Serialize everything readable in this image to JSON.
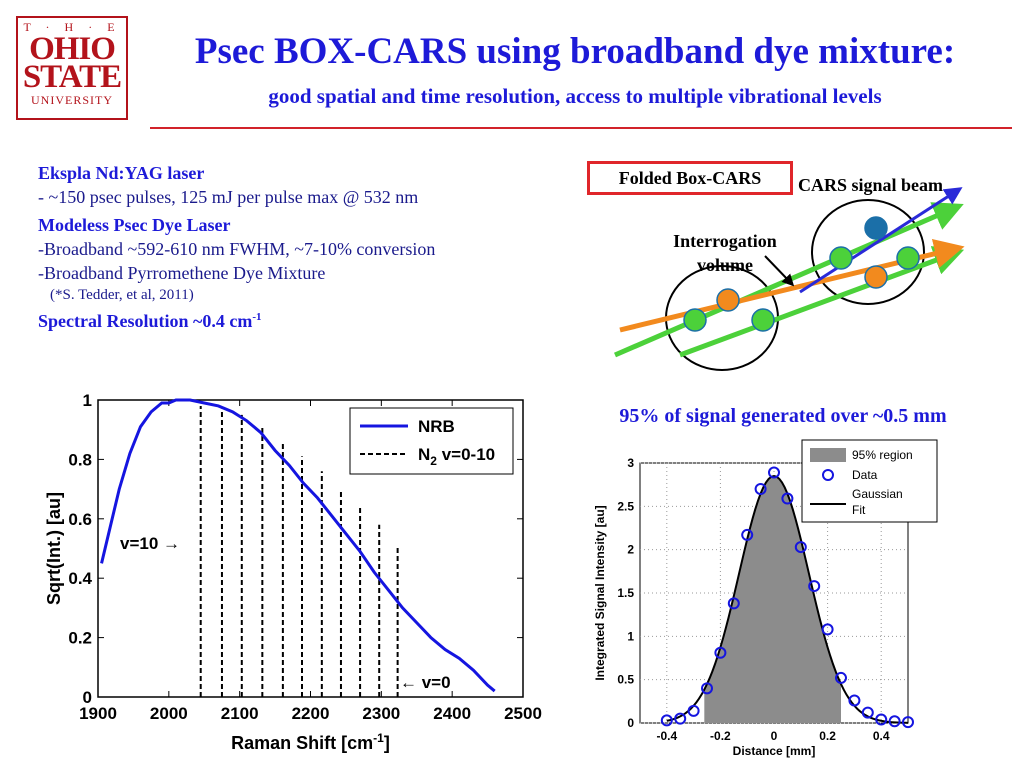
{
  "logo": {
    "line1": "T · H · E",
    "line2": "OHIO",
    "line3": "STATE",
    "line4": "UNIVERSITY"
  },
  "title": "Psec BOX-CARS using broadband dye mixture:",
  "subtitle": "good spatial and time resolution, access to multiple vibrational levels",
  "left_text": {
    "laser_head": "Ekspla Nd:YAG laser",
    "laser_detail": "- ~150 psec pulses, 125 mJ per pulse max @ 532 nm",
    "dye_head": "Modeless Psec Dye Laser",
    "dye_line1": "-Broadband ~592-610 nm FWHM, ~7-10% conversion",
    "dye_line2": "-Broadband Pyrromethene Dye Mixture",
    "dye_ref": "(*S. Tedder, et al, 2011)",
    "spectral_res": "Spectral Resolution ~0.4 cm",
    "spectral_res_sup": "-1"
  },
  "diagram": {
    "box_label": "Folded Box-CARS",
    "signal_label": "CARS signal beam",
    "interrogation_line1": "Interrogation",
    "interrogation_line2": "volume",
    "colors": {
      "green": "#4cd13a",
      "orange": "#f28a1e",
      "blue": "#2a2ad8",
      "lightblue": "#1b6fa8"
    }
  },
  "right_caption": "95% of signal generated over ~0.5 mm",
  "chart_data": [
    {
      "type": "line",
      "xlabel": "Raman Shift [cm",
      "xlabel_sup": "-1",
      "xlabel_end": "]",
      "ylabel": "Sqrt(Int.) [au]",
      "xlim": [
        1900,
        2500
      ],
      "ylim": [
        0,
        1
      ],
      "xticks": [
        "1900",
        "2000",
        "2100",
        "2200",
        "2300",
        "2400",
        "2500"
      ],
      "yticks": [
        "0",
        "0.2",
        "0.4",
        "0.6",
        "0.8",
        "1"
      ],
      "legend": {
        "nrb": "NRB",
        "n2": "N",
        "n2_sub": "2",
        "n2_rest": " v=0-10"
      },
      "annotations": {
        "v10": "v=10 →",
        "v0": "← v=0"
      },
      "series_nrb": {
        "name": "NRB",
        "x": [
          1905,
          1915,
          1930,
          1945,
          1960,
          1975,
          1990,
          2000,
          2010,
          2030,
          2050,
          2070,
          2090,
          2110,
          2130,
          2150,
          2170,
          2190,
          2210,
          2230,
          2250,
          2270,
          2290,
          2310,
          2330,
          2350,
          2370,
          2390,
          2410,
          2430,
          2450,
          2460
        ],
        "y": [
          0.45,
          0.55,
          0.7,
          0.82,
          0.91,
          0.96,
          0.99,
          0.99,
          1.0,
          1.0,
          0.99,
          0.98,
          0.96,
          0.93,
          0.89,
          0.83,
          0.78,
          0.72,
          0.67,
          0.61,
          0.55,
          0.49,
          0.42,
          0.36,
          0.3,
          0.25,
          0.2,
          0.16,
          0.13,
          0.09,
          0.04,
          0.02
        ]
      },
      "n2_lines_x": [
        2045,
        2075,
        2103,
        2132,
        2161,
        2188,
        2216,
        2243,
        2270,
        2297,
        2323
      ],
      "n2_lines_top": [
        0.98,
        0.97,
        0.95,
        0.91,
        0.86,
        0.81,
        0.76,
        0.7,
        0.64,
        0.58,
        0.51
      ]
    },
    {
      "type": "scatter",
      "xlabel": "Distance [mm]",
      "ylabel": "Integrated Signal Intensity [au]",
      "xlim": [
        -0.5,
        0.5
      ],
      "ylim": [
        0,
        3
      ],
      "xticks": [
        "-0.4",
        "-0.2",
        "0",
        "0.2",
        "0.4"
      ],
      "yticks": [
        "0",
        "0.5",
        "1",
        "1.5",
        "2",
        "2.5",
        "3"
      ],
      "legend": {
        "region": "95% region",
        "data": "Data",
        "fit1": "Gaussian",
        "fit2": "Fit"
      },
      "data_x": [
        -0.4,
        -0.35,
        -0.3,
        -0.25,
        -0.2,
        -0.15,
        -0.1,
        -0.05,
        0.0,
        0.05,
        0.1,
        0.15,
        0.2,
        0.25,
        0.3,
        0.35,
        0.4,
        0.45,
        0.5
      ],
      "data_y": [
        0.03,
        0.05,
        0.14,
        0.4,
        0.81,
        1.38,
        2.17,
        2.7,
        2.89,
        2.59,
        2.03,
        1.58,
        1.08,
        0.52,
        0.26,
        0.12,
        0.04,
        0.02,
        0.01
      ],
      "fit_amp": 2.85,
      "fit_sigma": 0.13,
      "region_x": [
        -0.26,
        0.25
      ]
    }
  ]
}
